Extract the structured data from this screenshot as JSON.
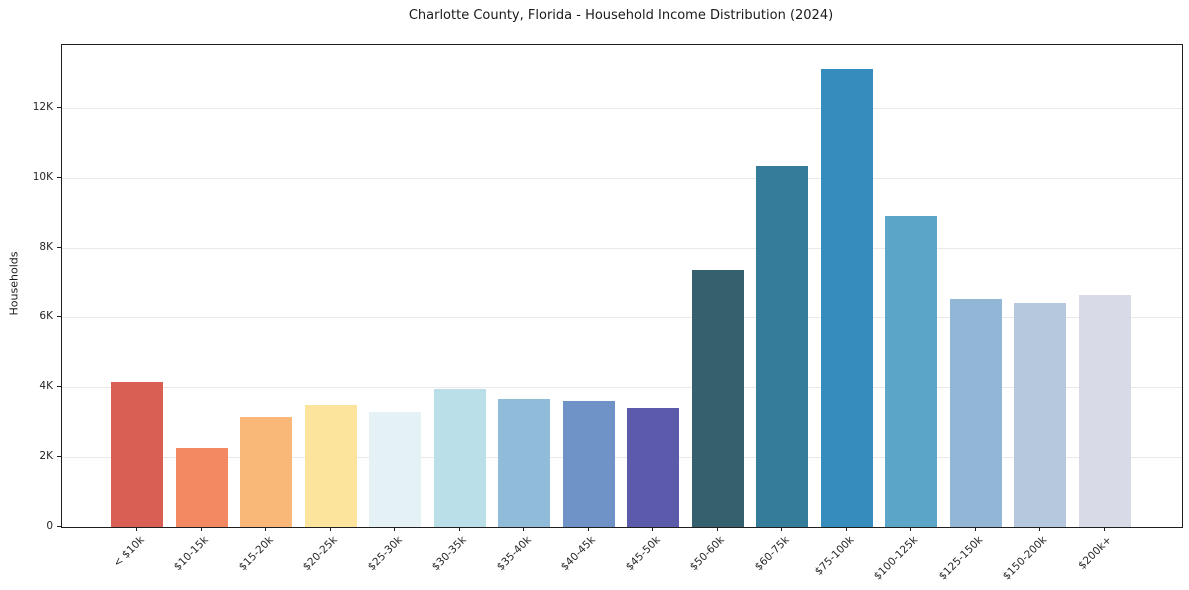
{
  "chart_data": {
    "type": "bar",
    "title": "Charlotte County, Florida - Household Income Distribution (2024)",
    "xlabel": "",
    "ylabel": "Households",
    "categories": [
      "< $10k",
      "$10-15k",
      "$15-20k",
      "$20-25k",
      "$25-30k",
      "$30-35k",
      "$35-40k",
      "$40-45k",
      "$45-50k",
      "$50-60k",
      "$60-75k",
      "$75-100k",
      "$100-125k",
      "$125-150k",
      "$150-200k",
      "$200k+"
    ],
    "values": [
      4150,
      2250,
      3150,
      3500,
      3300,
      3950,
      3660,
      3600,
      3400,
      7350,
      10350,
      13100,
      8900,
      6520,
      6400,
      6650
    ],
    "bar_colors": [
      "#d95f55",
      "#f28963",
      "#f9b878",
      "#fce49c",
      "#e4f2f5",
      "#bbdfe9",
      "#90bcd9",
      "#7093c7",
      "#5c5aab",
      "#35606e",
      "#357b9a",
      "#368cbd",
      "#5aa5c8",
      "#92b7d6",
      "#b6c8dd",
      "#d8dae8"
    ],
    "ylim": [
      0,
      13800
    ],
    "yticks": [
      {
        "label": "0",
        "value": 0
      },
      {
        "label": "2K",
        "value": 2000
      },
      {
        "label": "4K",
        "value": 4000
      },
      {
        "label": "6K",
        "value": 6000
      },
      {
        "label": "8K",
        "value": 8000
      },
      {
        "label": "10K",
        "value": 10000
      },
      {
        "label": "12K",
        "value": 12000
      }
    ],
    "grid": "horizontal",
    "legend": "none"
  }
}
